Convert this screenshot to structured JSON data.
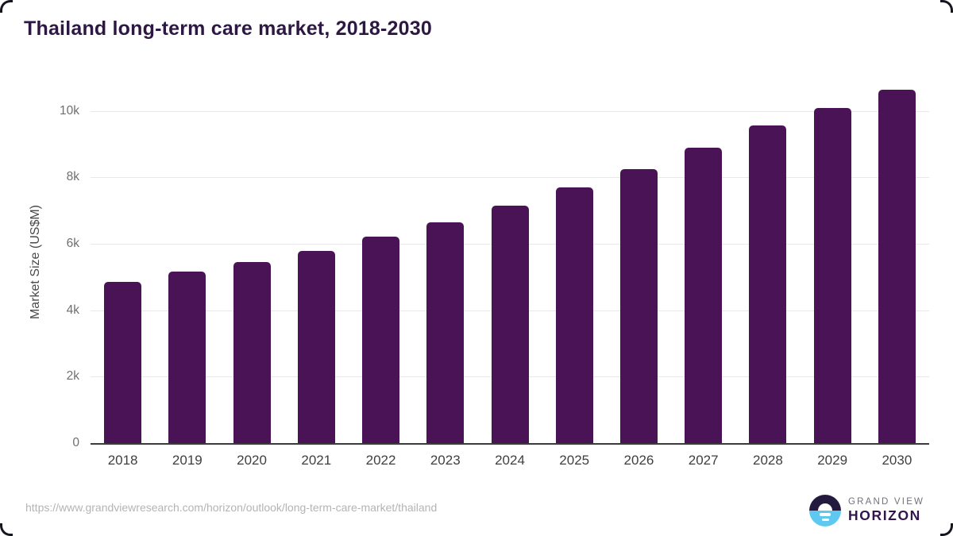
{
  "header": {
    "title": "Thailand long-term care market, 2018-2030"
  },
  "chart_data": {
    "type": "bar",
    "title": "Thailand long-term care market, 2018-2030",
    "xlabel": "",
    "ylabel": "Market Size (US$M)",
    "categories": [
      "2018",
      "2019",
      "2020",
      "2021",
      "2022",
      "2023",
      "2024",
      "2025",
      "2026",
      "2027",
      "2028",
      "2029",
      "2030"
    ],
    "values": [
      4860,
      5170,
      5440,
      5790,
      6210,
      6650,
      7140,
      7690,
      8260,
      8890,
      9560,
      10080,
      10640
    ],
    "yticks": [
      {
        "label": "0",
        "value": 0
      },
      {
        "label": "2k",
        "value": 2000
      },
      {
        "label": "4k",
        "value": 4000
      },
      {
        "label": "6k",
        "value": 6000
      },
      {
        "label": "8k",
        "value": 8000
      },
      {
        "label": "10k",
        "value": 10000
      }
    ],
    "ylim": [
      0,
      10950
    ],
    "grid": true,
    "legend": false,
    "bar_color": "#4a1356"
  },
  "footer": {
    "source_url": "https://www.grandviewresearch.com/horizon/outlook/long-term-care-market/thailand",
    "logo": {
      "line1": "GRAND VIEW",
      "line2": "HORIZON"
    }
  },
  "colors": {
    "bar": "#4a1356",
    "title_text": "#2d1843",
    "gridline": "#e8e8ea",
    "axis_line": "#3b3b3b",
    "ytick_text": "#6f6f6f",
    "xtick_text": "#3f3f3f",
    "url_text": "#b4b4b4",
    "logo_dark": "#241a3e",
    "logo_blue": "#5fc8f0",
    "logo_gray_text": "#71717b",
    "logo_purple_text": "#32154f"
  }
}
